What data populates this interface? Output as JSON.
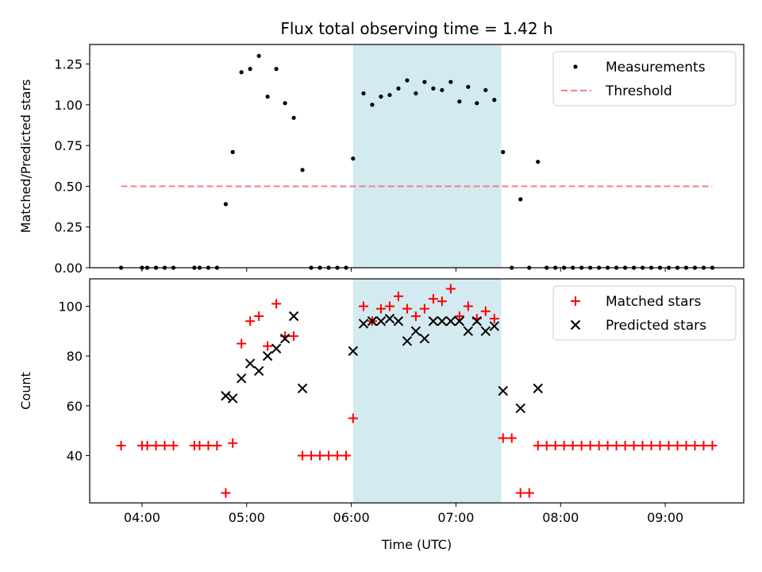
{
  "chart_data": [
    {
      "type": "scatter",
      "title": "Flux total observing time = 1.42 h",
      "xlabel": "",
      "ylabel": "Matched/Predicted stars",
      "xlim": [
        "03:30",
        "09:45"
      ],
      "ylim": [
        0,
        1.37
      ],
      "yticks": [
        "0.00",
        "0.25",
        "0.50",
        "0.75",
        "1.00",
        "1.25"
      ],
      "xticks": [
        "04:00",
        "05:00",
        "06:00",
        "07:00",
        "08:00",
        "09:00"
      ],
      "show_xtick_labels": false,
      "highlight_span": [
        "06:01",
        "07:26"
      ],
      "highlight_color": "#d4eaf1",
      "legend": "top-right",
      "series": [
        {
          "name": "Measurements",
          "marker": "dot",
          "color": "#000000",
          "points": [
            [
              "03:48",
              0
            ],
            [
              "04:00",
              0
            ],
            [
              "04:03",
              0
            ],
            [
              "04:08",
              0
            ],
            [
              "04:13",
              0
            ],
            [
              "04:18",
              0
            ],
            [
              "04:30",
              0
            ],
            [
              "04:33",
              0
            ],
            [
              "04:38",
              0
            ],
            [
              "04:43",
              0
            ],
            [
              "04:48",
              0.39
            ],
            [
              "04:52",
              0.71
            ],
            [
              "04:57",
              1.2
            ],
            [
              "05:02",
              1.22
            ],
            [
              "05:07",
              1.3
            ],
            [
              "05:12",
              1.05
            ],
            [
              "05:17",
              1.22
            ],
            [
              "05:22",
              1.01
            ],
            [
              "05:27",
              0.92
            ],
            [
              "05:32",
              0.6
            ],
            [
              "05:37",
              0
            ],
            [
              "05:42",
              0
            ],
            [
              "05:47",
              0
            ],
            [
              "05:52",
              0
            ],
            [
              "05:57",
              0
            ],
            [
              "06:01",
              0.67
            ],
            [
              "06:07",
              1.07
            ],
            [
              "06:12",
              1.0
            ],
            [
              "06:17",
              1.05
            ],
            [
              "06:22",
              1.06
            ],
            [
              "06:27",
              1.1
            ],
            [
              "06:32",
              1.15
            ],
            [
              "06:37",
              1.07
            ],
            [
              "06:42",
              1.14
            ],
            [
              "06:47",
              1.1
            ],
            [
              "06:52",
              1.09
            ],
            [
              "06:57",
              1.14
            ],
            [
              "07:02",
              1.02
            ],
            [
              "07:07",
              1.11
            ],
            [
              "07:12",
              1.01
            ],
            [
              "07:17",
              1.09
            ],
            [
              "07:22",
              1.03
            ],
            [
              "07:27",
              0.71
            ],
            [
              "07:32",
              0
            ],
            [
              "07:37",
              0.42
            ],
            [
              "07:42",
              0
            ],
            [
              "07:47",
              0.65
            ],
            [
              "07:52",
              0
            ],
            [
              "07:57",
              0
            ],
            [
              "08:02",
              0
            ],
            [
              "08:07",
              0
            ],
            [
              "08:12",
              0
            ],
            [
              "08:17",
              0
            ],
            [
              "08:22",
              0
            ],
            [
              "08:27",
              0
            ],
            [
              "08:32",
              0
            ],
            [
              "08:37",
              0
            ],
            [
              "08:42",
              0
            ],
            [
              "08:47",
              0
            ],
            [
              "08:52",
              0
            ],
            [
              "08:57",
              0
            ],
            [
              "09:02",
              0
            ],
            [
              "09:07",
              0
            ],
            [
              "09:12",
              0
            ],
            [
              "09:17",
              0
            ],
            [
              "09:22",
              0
            ],
            [
              "09:27",
              0
            ]
          ]
        },
        {
          "name": "Threshold",
          "marker": "dashed-line",
          "color": "#f08080",
          "points": [
            [
              "03:48",
              0.5
            ],
            [
              "09:27",
              0.5
            ]
          ]
        }
      ]
    },
    {
      "type": "scatter",
      "title": "",
      "xlabel": "Time (UTC)",
      "ylabel": "Count",
      "xlim": [
        "03:30",
        "09:45"
      ],
      "ylim": [
        21,
        111
      ],
      "yticks": [
        "40",
        "60",
        "80",
        "100"
      ],
      "xticks": [
        "04:00",
        "05:00",
        "06:00",
        "07:00",
        "08:00",
        "09:00"
      ],
      "show_xtick_labels": true,
      "highlight_span": [
        "06:01",
        "07:26"
      ],
      "highlight_color": "#d4eaf1",
      "legend": "top-right",
      "series": [
        {
          "name": "Matched stars",
          "marker": "plus",
          "color": "#ff0000",
          "points": [
            [
              "03:48",
              44
            ],
            [
              "04:00",
              44
            ],
            [
              "04:03",
              44
            ],
            [
              "04:08",
              44
            ],
            [
              "04:13",
              44
            ],
            [
              "04:18",
              44
            ],
            [
              "04:30",
              44
            ],
            [
              "04:33",
              44
            ],
            [
              "04:38",
              44
            ],
            [
              "04:43",
              44
            ],
            [
              "04:48",
              25
            ],
            [
              "04:52",
              45
            ],
            [
              "04:57",
              85
            ],
            [
              "05:02",
              94
            ],
            [
              "05:07",
              96
            ],
            [
              "05:12",
              84
            ],
            [
              "05:17",
              101
            ],
            [
              "05:22",
              88
            ],
            [
              "05:27",
              88
            ],
            [
              "05:32",
              40
            ],
            [
              "05:37",
              40
            ],
            [
              "05:42",
              40
            ],
            [
              "05:47",
              40
            ],
            [
              "05:52",
              40
            ],
            [
              "05:57",
              40
            ],
            [
              "06:01",
              55
            ],
            [
              "06:07",
              100
            ],
            [
              "06:12",
              94
            ],
            [
              "06:17",
              99
            ],
            [
              "06:22",
              100
            ],
            [
              "06:27",
              104
            ],
            [
              "06:32",
              99
            ],
            [
              "06:37",
              96
            ],
            [
              "06:42",
              99
            ],
            [
              "06:47",
              103
            ],
            [
              "06:52",
              102
            ],
            [
              "06:57",
              107
            ],
            [
              "07:02",
              96
            ],
            [
              "07:07",
              100
            ],
            [
              "07:12",
              95
            ],
            [
              "07:17",
              98
            ],
            [
              "07:22",
              95
            ],
            [
              "07:27",
              47
            ],
            [
              "07:32",
              47
            ],
            [
              "07:37",
              25
            ],
            [
              "07:42",
              25
            ],
            [
              "07:47",
              44
            ],
            [
              "07:52",
              44
            ],
            [
              "07:57",
              44
            ],
            [
              "08:02",
              44
            ],
            [
              "08:07",
              44
            ],
            [
              "08:12",
              44
            ],
            [
              "08:17",
              44
            ],
            [
              "08:22",
              44
            ],
            [
              "08:27",
              44
            ],
            [
              "08:32",
              44
            ],
            [
              "08:37",
              44
            ],
            [
              "08:42",
              44
            ],
            [
              "08:47",
              44
            ],
            [
              "08:52",
              44
            ],
            [
              "08:57",
              44
            ],
            [
              "09:02",
              44
            ],
            [
              "09:07",
              44
            ],
            [
              "09:12",
              44
            ],
            [
              "09:17",
              44
            ],
            [
              "09:22",
              44
            ],
            [
              "09:27",
              44
            ]
          ]
        },
        {
          "name": "Predicted stars",
          "marker": "x",
          "color": "#000000",
          "points": [
            [
              "04:48",
              64
            ],
            [
              "04:52",
              63
            ],
            [
              "04:57",
              71
            ],
            [
              "05:02",
              77
            ],
            [
              "05:07",
              74
            ],
            [
              "05:12",
              80
            ],
            [
              "05:17",
              83
            ],
            [
              "05:22",
              87
            ],
            [
              "05:27",
              96
            ],
            [
              "05:32",
              67
            ],
            [
              "06:01",
              82
            ],
            [
              "06:07",
              93
            ],
            [
              "06:12",
              94
            ],
            [
              "06:17",
              94
            ],
            [
              "06:22",
              95
            ],
            [
              "06:27",
              94
            ],
            [
              "06:32",
              86
            ],
            [
              "06:37",
              90
            ],
            [
              "06:42",
              87
            ],
            [
              "06:47",
              94
            ],
            [
              "06:52",
              94
            ],
            [
              "06:57",
              94
            ],
            [
              "07:02",
              94
            ],
            [
              "07:07",
              90
            ],
            [
              "07:12",
              94
            ],
            [
              "07:17",
              90
            ],
            [
              "07:22",
              92
            ],
            [
              "07:27",
              66
            ],
            [
              "07:37",
              59
            ],
            [
              "07:47",
              67
            ]
          ]
        }
      ]
    }
  ]
}
